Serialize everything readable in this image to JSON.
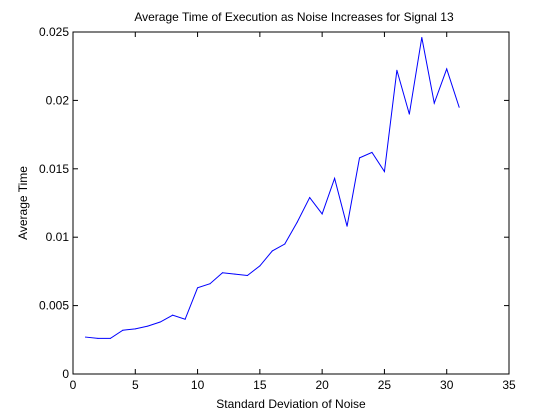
{
  "chart_data": {
    "type": "line",
    "title": "Average Time of Execution as Noise Increases for Signal 13",
    "xlabel": "Standard Deviation of Noise",
    "ylabel": "Average Time",
    "xlim": [
      0,
      35
    ],
    "ylim": [
      0,
      0.025
    ],
    "xticks": [
      0,
      5,
      10,
      15,
      20,
      25,
      30,
      35
    ],
    "xtick_labels": [
      "0",
      "5",
      "10",
      "15",
      "20",
      "25",
      "30",
      "35"
    ],
    "yticks": [
      0,
      0.005,
      0.01,
      0.015,
      0.02,
      0.025
    ],
    "ytick_labels": [
      "0",
      "0.005",
      "0.01",
      "0.015",
      "0.02",
      "0.025"
    ],
    "grid": false,
    "series": [
      {
        "color": "#0000ff",
        "x": [
          1,
          2,
          3,
          4,
          5,
          6,
          7,
          8,
          9,
          10,
          11,
          12,
          13,
          14,
          15,
          16,
          17,
          18,
          19,
          20,
          21,
          22,
          23,
          24,
          25,
          26,
          27,
          28,
          29,
          30,
          31
        ],
        "y": [
          0.0027,
          0.0026,
          0.0026,
          0.0032,
          0.0033,
          0.0035,
          0.0038,
          0.0043,
          0.004,
          0.0063,
          0.0066,
          0.0074,
          0.0073,
          0.0072,
          0.0079,
          0.009,
          0.0095,
          0.0111,
          0.0129,
          0.0117,
          0.0143,
          0.0108,
          0.0158,
          0.0162,
          0.0148,
          0.0222,
          0.019,
          0.0246,
          0.0198,
          0.0223,
          0.0195
        ]
      }
    ]
  }
}
